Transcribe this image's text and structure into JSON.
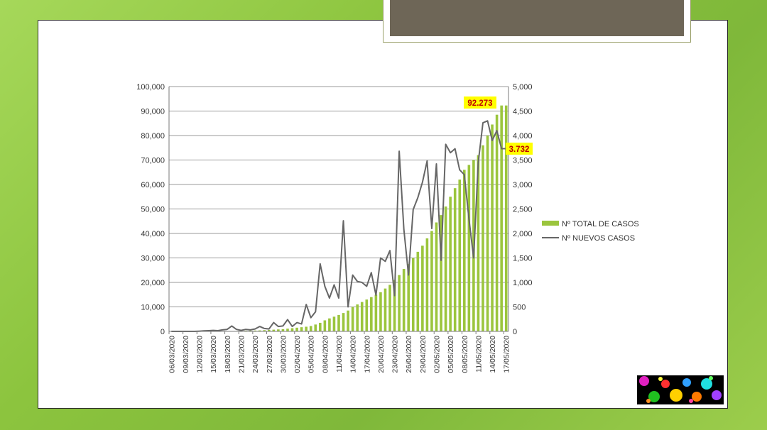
{
  "chart_data": {
    "type": "bar+line",
    "categories": [
      "06/03/2020",
      "07/03/2020",
      "08/03/2020",
      "09/03/2020",
      "10/03/2020",
      "11/03/2020",
      "12/03/2020",
      "13/03/2020",
      "14/03/2020",
      "15/03/2020",
      "16/03/2020",
      "17/03/2020",
      "18/03/2020",
      "19/03/2020",
      "20/03/2020",
      "21/03/2020",
      "22/03/2020",
      "23/03/2020",
      "24/03/2020",
      "25/03/2020",
      "26/03/2020",
      "27/03/2020",
      "28/03/2020",
      "29/03/2020",
      "30/03/2020",
      "31/03/2020",
      "01/04/2020",
      "02/04/2020",
      "03/04/2020",
      "04/04/2020",
      "05/04/2020",
      "06/04/2020",
      "07/04/2020",
      "08/04/2020",
      "09/04/2020",
      "10/04/2020",
      "11/04/2020",
      "12/04/2020",
      "13/04/2020",
      "14/04/2020",
      "15/04/2020",
      "16/04/2020",
      "17/04/2020",
      "18/04/2020",
      "19/04/2020",
      "20/04/2020",
      "21/04/2020",
      "22/04/2020",
      "23/04/2020",
      "24/04/2020",
      "25/04/2020",
      "26/04/2020",
      "27/04/2020",
      "28/04/2020",
      "29/04/2020",
      "30/04/2020",
      "01/05/2020",
      "02/05/2020",
      "03/05/2020",
      "04/05/2020",
      "05/05/2020",
      "06/05/2020",
      "07/05/2020",
      "08/05/2020",
      "09/05/2020",
      "10/05/2020",
      "11/05/2020",
      "12/05/2020",
      "13/05/2020",
      "14/05/2020",
      "15/05/2020",
      "16/05/2020",
      "17/05/2020"
    ],
    "tick_labels": [
      "06/03/2020",
      "09/03/2020",
      "12/03/2020",
      "15/03/2020",
      "18/03/2020",
      "21/03/2020",
      "24/03/2020",
      "27/03/2020",
      "30/03/2020",
      "02/04/2020",
      "05/04/2020",
      "08/04/2020",
      "11/04/2020",
      "14/04/2020",
      "17/04/2020",
      "20/04/2020",
      "23/04/2020",
      "26/04/2020",
      "29/04/2020",
      "02/05/2020",
      "05/05/2020",
      "08/05/2020",
      "11/05/2020",
      "14/05/2020",
      "17/05/2020"
    ],
    "series": [
      {
        "name": "Nº TOTAL DE CASOS",
        "type": "bar",
        "axis": "left",
        "color": "#9bc53d",
        "values": [
          0,
          0,
          0,
          0,
          0,
          0,
          2,
          5,
          10,
          15,
          20,
          30,
          50,
          80,
          150,
          200,
          250,
          300,
          350,
          400,
          500,
          600,
          700,
          800,
          900,
          1100,
          1300,
          1500,
          1700,
          1900,
          2200,
          2800,
          3500,
          4500,
          5300,
          6000,
          6700,
          7500,
          8500,
          10000,
          11000,
          12000,
          13000,
          14000,
          15000,
          16000,
          17500,
          19000,
          21000,
          23000,
          25500,
          27500,
          30000,
          32500,
          35000,
          38000,
          41000,
          44500,
          47500,
          51000,
          55000,
          58500,
          62000,
          66000,
          68000,
          70000,
          72000,
          76000,
          80000,
          84500,
          88500,
          92273,
          92273
        ]
      },
      {
        "name": "Nº NUEVOS CASOS",
        "type": "line",
        "axis": "right",
        "color": "#666666",
        "values": [
          0,
          0,
          0,
          0,
          0,
          0,
          5,
          10,
          15,
          20,
          15,
          30,
          40,
          110,
          40,
          20,
          40,
          30,
          50,
          100,
          60,
          50,
          180,
          100,
          110,
          240,
          100,
          180,
          150,
          550,
          280,
          400,
          1380,
          920,
          680,
          950,
          680,
          2260,
          500,
          1150,
          1020,
          1000,
          920,
          1200,
          740,
          1500,
          1430,
          1650,
          730,
          3680,
          2080,
          1150,
          2490,
          2730,
          3050,
          3480,
          2100,
          3420,
          1450,
          3820,
          3650,
          3730,
          3300,
          3200,
          2300,
          1500,
          3450,
          4260,
          4300,
          3900,
          4100,
          3732,
          3732
        ]
      }
    ],
    "yleft": {
      "min": 0,
      "max": 100000,
      "ticks": [
        "0",
        "10,000",
        "20,000",
        "30,000",
        "40,000",
        "50,000",
        "60,000",
        "70,000",
        "80,000",
        "90,000",
        "100,000"
      ]
    },
    "yright": {
      "min": 0,
      "max": 5000,
      "ticks": [
        "0",
        "500",
        "1,000",
        "1,500",
        "2,000",
        "2,500",
        "3,000",
        "3,500",
        "4,000",
        "4,500",
        "5,000"
      ]
    },
    "annotations": [
      {
        "text": "92.273",
        "series": "Nº TOTAL DE CASOS",
        "highlight": "#ffff00",
        "color": "#c00000"
      },
      {
        "text": "3.732",
        "series": "Nº NUEVOS CASOS",
        "highlight": "#ffff00",
        "color": "#c00000"
      }
    ],
    "grid": true,
    "legend_position": "right"
  }
}
